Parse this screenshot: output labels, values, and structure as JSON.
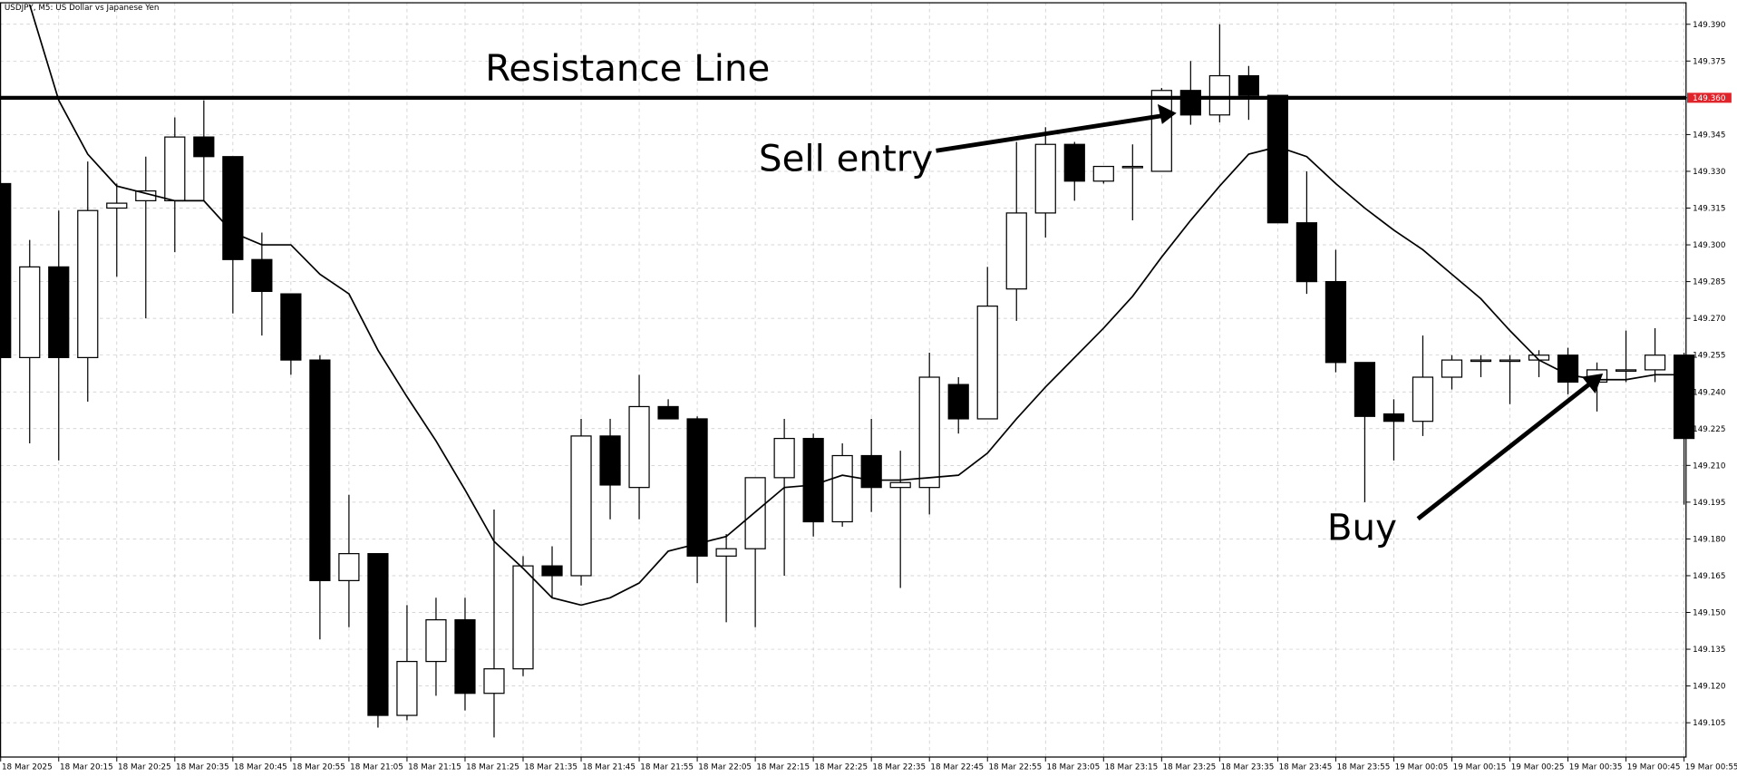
{
  "chart_data": {
    "type": "candlestick",
    "title": "USDJPY, M5:  US Dollar vs Japanese Yen",
    "categories": [
      "18 Mar 2025",
      null,
      "18 Mar 20:15",
      null,
      "18 Mar 20:25",
      null,
      "18 Mar 20:35",
      null,
      "18 Mar 20:45",
      null,
      "18 Mar 20:55",
      null,
      "18 Mar 21:05",
      null,
      "18 Mar 21:15",
      null,
      "18 Mar 21:25",
      null,
      "18 Mar 21:35",
      null,
      "18 Mar 21:45",
      null,
      "18 Mar 21:55",
      null,
      "18 Mar 22:05",
      null,
      "18 Mar 22:15",
      null,
      "18 Mar 22:25",
      null,
      "18 Mar 22:35",
      null,
      "18 Mar 22:45",
      null,
      "18 Mar 22:55",
      null,
      "18 Mar 23:05",
      null,
      "18 Mar 23:15",
      null,
      "18 Mar 23:25",
      null,
      "18 Mar 23:35",
      null,
      "18 Mar 23:45",
      null,
      "18 Mar 23:55",
      null,
      "19 Mar 00:05",
      null,
      "19 Mar 00:15",
      null,
      "19 Mar 00:25",
      null,
      "19 Mar 00:35",
      null,
      "19 Mar 00:45",
      null,
      "19 Mar 00:55"
    ],
    "open": [
      149.325,
      149.254,
      149.291,
      149.254,
      149.315,
      149.318,
      149.318,
      149.344,
      149.336,
      149.294,
      149.28,
      149.253,
      149.163,
      149.174,
      149.108,
      149.13,
      149.147,
      149.117,
      149.127,
      149.169,
      149.165,
      149.222,
      149.201,
      149.234,
      149.229,
      149.173,
      149.176,
      149.205,
      149.221,
      149.187,
      149.214,
      149.201,
      149.201,
      149.243,
      149.229,
      149.282,
      149.313,
      149.341,
      149.326,
      149.332,
      149.33,
      149.363,
      149.353,
      149.369,
      149.361,
      149.309,
      149.285,
      149.252,
      149.231,
      149.228,
      149.246,
      149.253,
      149.253,
      149.253,
      149.255,
      149.244,
      149.249,
      149.249,
      149.255
    ],
    "high": [
      149.325,
      149.302,
      149.314,
      149.334,
      149.325,
      149.336,
      149.352,
      149.359,
      149.336,
      149.305,
      149.28,
      149.255,
      149.198,
      149.174,
      149.153,
      149.156,
      149.156,
      149.192,
      149.173,
      149.177,
      149.229,
      149.229,
      149.247,
      149.237,
      149.23,
      149.182,
      149.205,
      149.229,
      149.223,
      149.219,
      149.229,
      149.216,
      149.256,
      149.246,
      149.291,
      149.342,
      149.348,
      149.342,
      149.332,
      149.341,
      149.364,
      149.375,
      149.39,
      149.373,
      149.361,
      149.33,
      149.298,
      149.252,
      149.237,
      149.263,
      149.255,
      149.255,
      149.255,
      149.257,
      149.258,
      149.252,
      149.265,
      149.266,
      149.256
    ],
    "low": [
      149.254,
      149.219,
      149.212,
      149.236,
      149.287,
      149.27,
      149.297,
      149.318,
      149.272,
      149.263,
      149.247,
      149.139,
      149.144,
      149.103,
      149.106,
      149.116,
      149.11,
      149.099,
      149.124,
      149.156,
      149.161,
      149.188,
      149.188,
      149.229,
      149.162,
      149.146,
      149.144,
      149.165,
      149.181,
      149.185,
      149.191,
      149.16,
      149.19,
      149.223,
      149.229,
      149.269,
      149.303,
      149.318,
      149.325,
      149.31,
      149.33,
      149.349,
      149.35,
      149.351,
      149.309,
      149.28,
      149.248,
      149.195,
      149.212,
      149.222,
      149.241,
      149.246,
      149.235,
      149.246,
      149.239,
      149.232,
      149.244,
      149.244,
      149.194
    ],
    "close": [
      149.254,
      149.291,
      149.254,
      149.314,
      149.317,
      149.322,
      149.344,
      149.336,
      149.294,
      149.281,
      149.253,
      149.163,
      149.174,
      149.108,
      149.13,
      149.147,
      149.117,
      149.127,
      149.169,
      149.165,
      149.222,
      149.202,
      149.234,
      149.229,
      149.173,
      149.176,
      149.205,
      149.221,
      149.187,
      149.214,
      149.201,
      149.203,
      149.246,
      149.229,
      149.275,
      149.313,
      149.341,
      149.326,
      149.332,
      149.332,
      149.363,
      149.353,
      149.369,
      149.361,
      149.309,
      149.285,
      149.252,
      149.23,
      149.228,
      149.246,
      149.253,
      149.253,
      149.253,
      149.255,
      149.244,
      149.249,
      149.249,
      149.255,
      149.221
    ],
    "up_color": "#ffffff",
    "down_color": "#000000",
    "ma": [
      null,
      149.398,
      149.359,
      149.337,
      149.324,
      149.321,
      149.318,
      149.318,
      149.305,
      149.3,
      149.3,
      149.288,
      149.28,
      149.257,
      149.238,
      149.22,
      149.2,
      149.179,
      149.168,
      149.156,
      149.153,
      149.156,
      149.162,
      149.175,
      149.178,
      149.181,
      149.191,
      149.201,
      149.202,
      149.206,
      149.204,
      149.204,
      149.205,
      149.206,
      149.215,
      149.229,
      149.242,
      149.254,
      149.266,
      149.279,
      149.295,
      149.31,
      149.324,
      149.337,
      149.34,
      149.336,
      149.325,
      149.315,
      149.306,
      149.298,
      149.288,
      149.278,
      149.265,
      149.253,
      149.247,
      149.245,
      149.245,
      149.247,
      149.247
    ],
    "ma_color": "#000000",
    "resistance": {
      "label": "Resistance Line",
      "value": 149.36,
      "value_label": "149.360",
      "color": "#000000",
      "tag_color": "#e0242b"
    },
    "annotations": [
      {
        "text": "Sell entry"
      },
      {
        "text": "Buy"
      }
    ],
    "ylim": [
      149.091,
      149.399
    ],
    "yticks": [
      149.105,
      {
        "value": 149.12,
        "label": "149.120"
      },
      149.135,
      {
        "value": 149.15,
        "label": "149.150"
      },
      149.165,
      {
        "value": 149.18,
        "label": "149.180"
      },
      149.195,
      {
        "value": 149.21,
        "label": "149.210"
      },
      149.225,
      {
        "value": 149.24,
        "label": "149.240"
      },
      149.255,
      {
        "value": 149.27,
        "label": "149.270"
      },
      149.285,
      {
        "value": 149.3,
        "label": "149.300"
      },
      149.315,
      {
        "value": 149.33,
        "label": "149.330"
      },
      149.345,
      {
        "value": 149.36,
        "label": "149.360"
      },
      149.375,
      {
        "value": 149.39,
        "label": "149.390"
      }
    ],
    "grid": true
  }
}
